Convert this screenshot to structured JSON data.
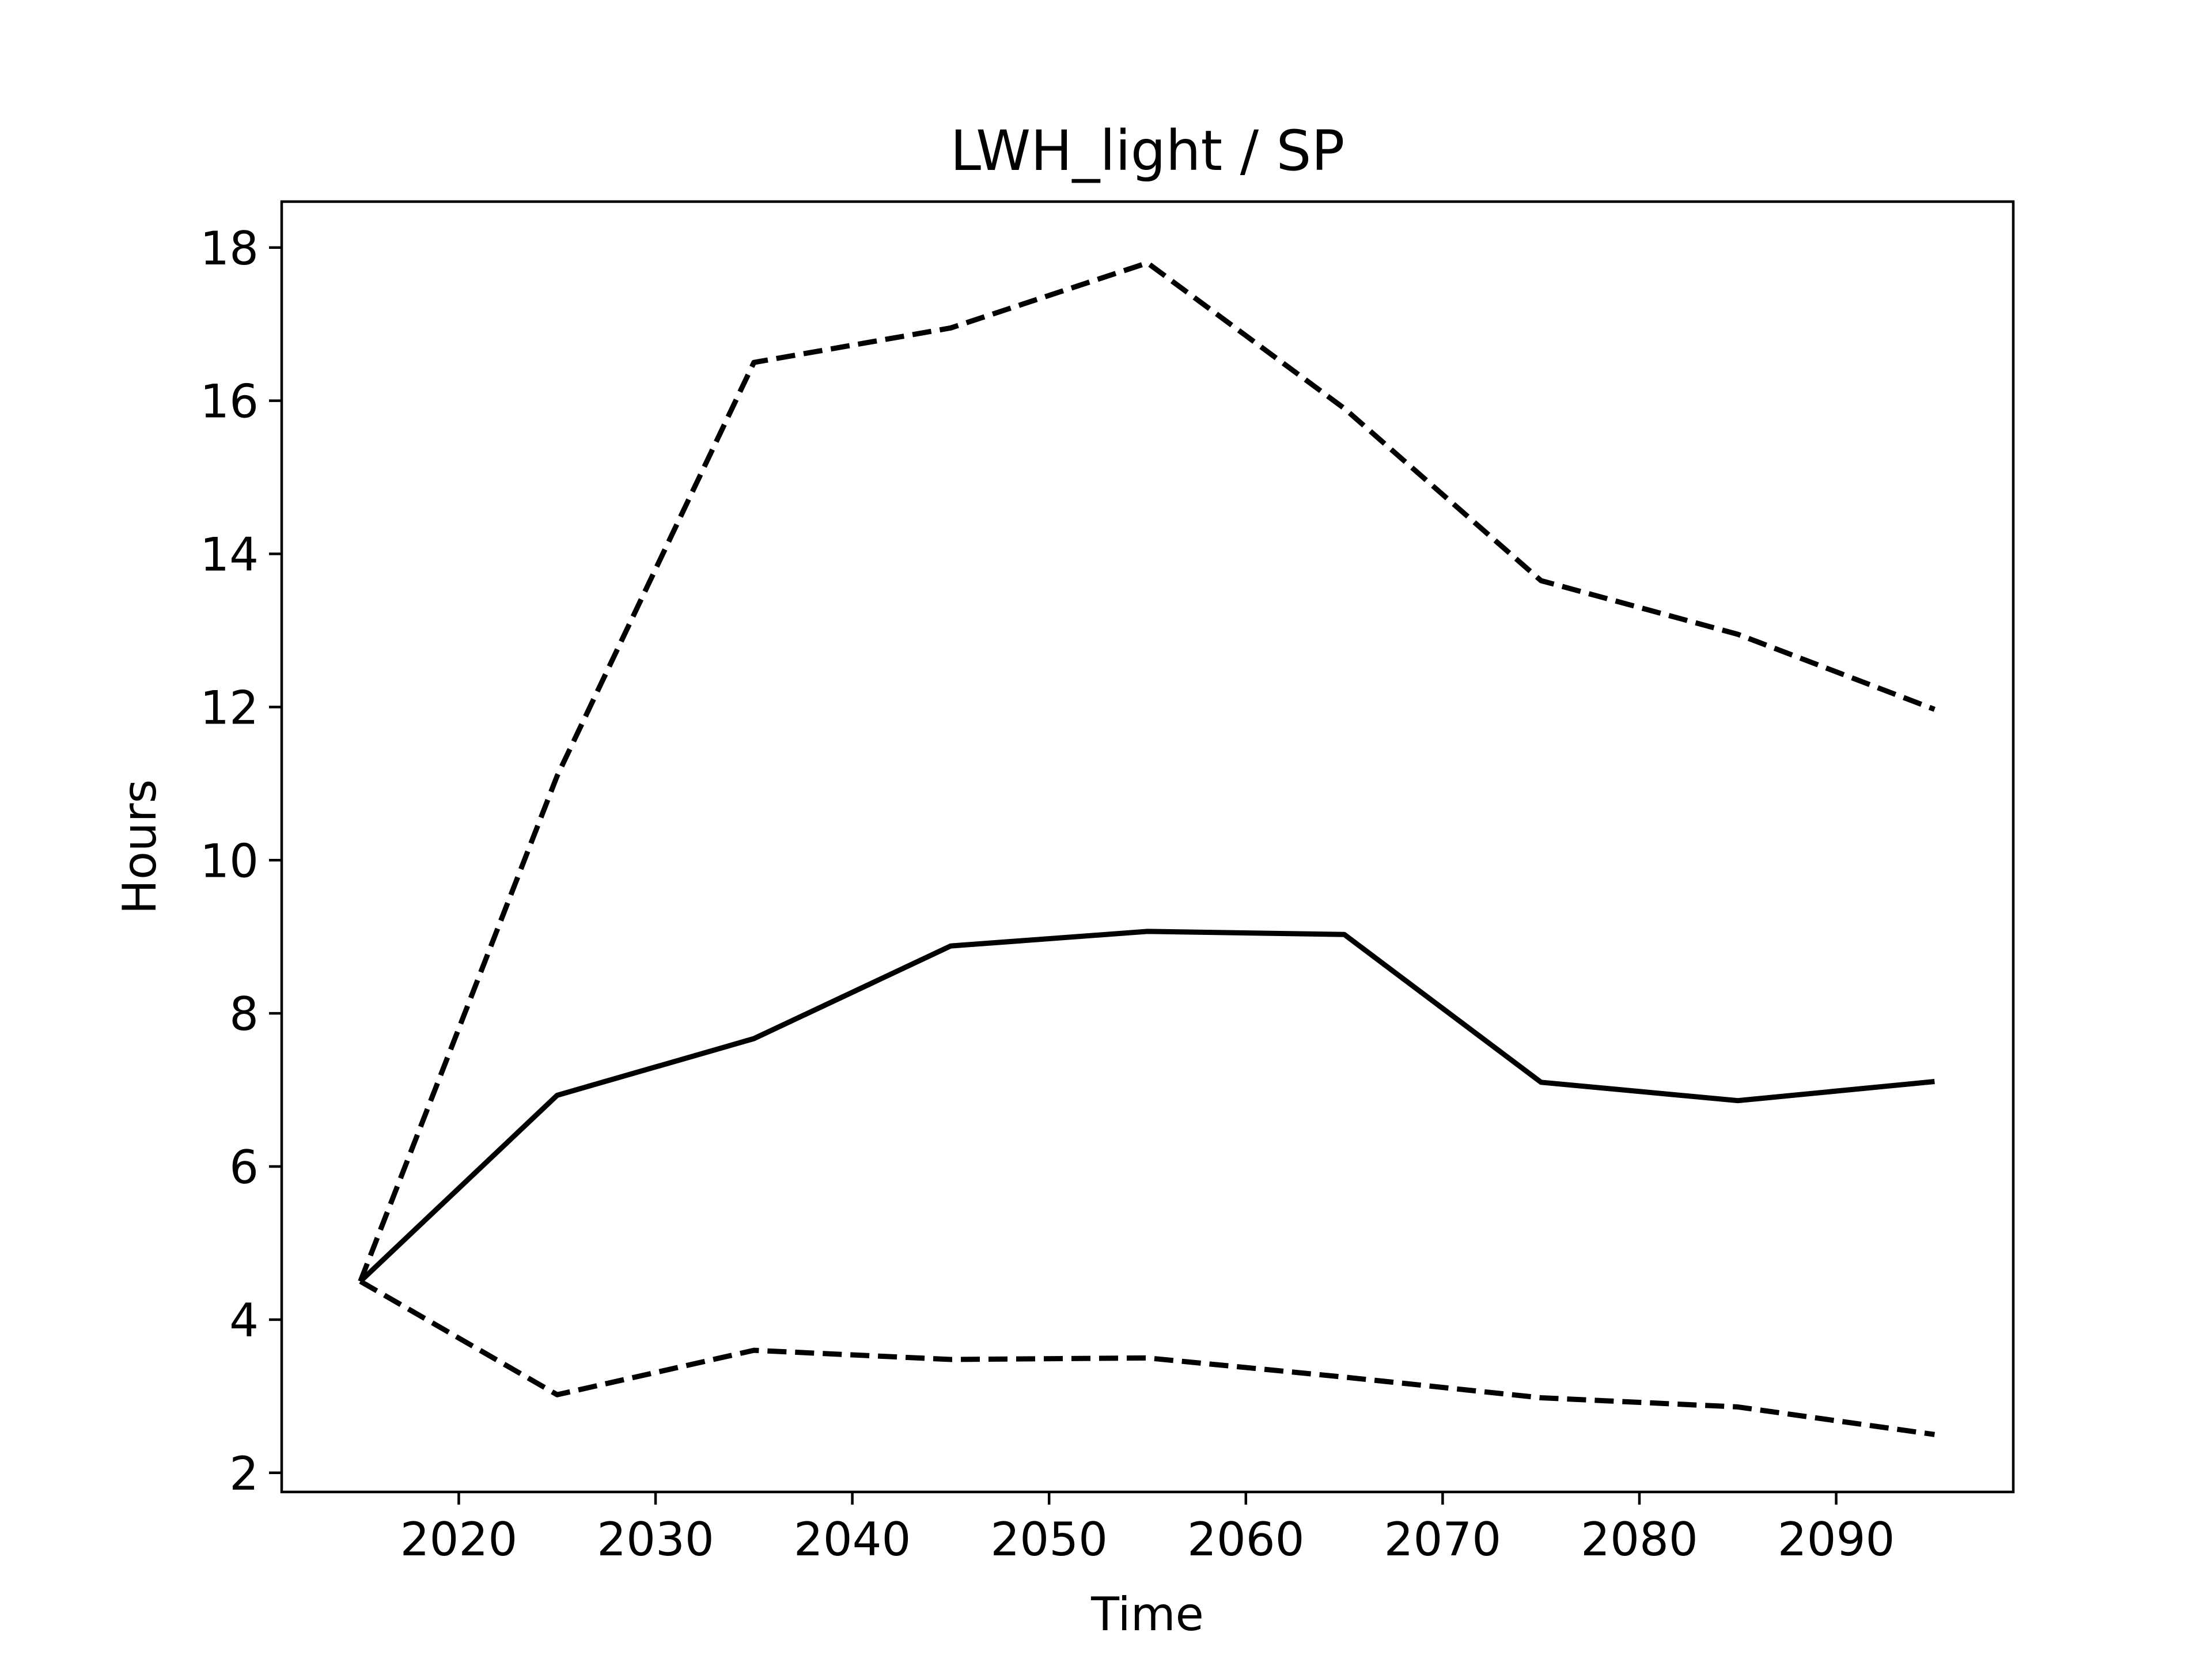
{
  "chart_data": {
    "type": "line",
    "title": "LWH_light / SP",
    "xlabel": "Time",
    "ylabel": "Hours",
    "xlim": [
      2011,
      2099
    ],
    "ylim": [
      1.75,
      18.6
    ],
    "xticks": [
      2020,
      2030,
      2040,
      2050,
      2060,
      2070,
      2080,
      2090
    ],
    "yticks": [
      2,
      4,
      6,
      8,
      10,
      12,
      14,
      16,
      18
    ],
    "grid": false,
    "x": [
      2015,
      2025,
      2035,
      2045,
      2055,
      2065,
      2075,
      2085,
      2095
    ],
    "series": [
      {
        "style": "solid",
        "color": "#000000",
        "values": [
          4.5,
          6.93,
          7.67,
          8.88,
          9.07,
          9.03,
          7.1,
          6.86,
          7.11
        ]
      },
      {
        "style": "dashed",
        "color": "#000000",
        "values": [
          4.5,
          11.1,
          16.5,
          16.95,
          17.8,
          15.9,
          13.65,
          12.95,
          11.97
        ]
      },
      {
        "style": "dashed",
        "color": "#000000",
        "values": [
          4.5,
          3.02,
          3.6,
          3.48,
          3.5,
          3.25,
          2.98,
          2.86,
          2.5
        ]
      }
    ]
  }
}
